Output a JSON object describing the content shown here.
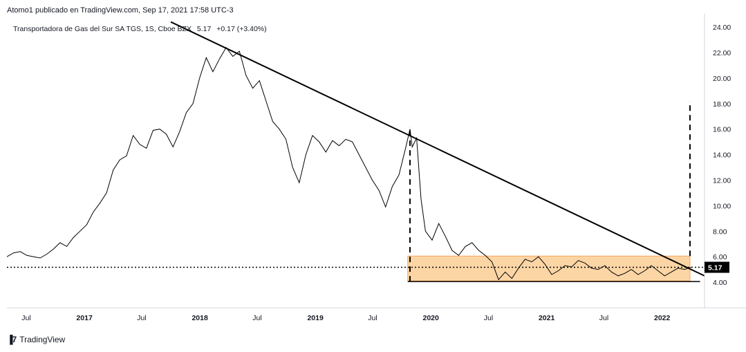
{
  "header": {
    "text": "Atomo1 publicado en TradingView.com, Sep 17, 2021 17:58 UTC-3"
  },
  "legend": {
    "symbol": "Transportadora de Gas del Sur SA TGS, 1S, Cboe BZX",
    "last": "5.17",
    "change": "+0.17 (+3.40%)"
  },
  "footer": {
    "brand": "TradingView",
    "icon": "tradingview-logo-icon"
  },
  "colors": {
    "line": "#000000",
    "zone_fill": "#fcd5a5",
    "zone_stroke": "#f7a35c",
    "price_label_bg": "#000000",
    "price_label_text": "#ffffff"
  },
  "chart_data": {
    "type": "line",
    "title": "",
    "xlabel": "",
    "ylabel": "",
    "ylim": [
      2.0,
      24.6
    ],
    "xlim": [
      "2016-05-01",
      "2022-05-15"
    ],
    "yticks": [
      "4.00",
      "6.00",
      "8.00",
      "10.00",
      "12.00",
      "14.00",
      "16.00",
      "18.00",
      "20.00",
      "22.00",
      "24.00"
    ],
    "xticks": [
      {
        "label": "Jul",
        "date": "2016-07-01",
        "bold": false
      },
      {
        "label": "2017",
        "date": "2017-01-01",
        "bold": true
      },
      {
        "label": "Jul",
        "date": "2017-07-01",
        "bold": false
      },
      {
        "label": "2018",
        "date": "2018-01-01",
        "bold": true
      },
      {
        "label": "Jul",
        "date": "2018-07-01",
        "bold": false
      },
      {
        "label": "2019",
        "date": "2019-01-01",
        "bold": true
      },
      {
        "label": "Jul",
        "date": "2019-07-01",
        "bold": false
      },
      {
        "label": "2020",
        "date": "2020-01-01",
        "bold": true
      },
      {
        "label": "Jul",
        "date": "2020-07-01",
        "bold": false
      },
      {
        "label": "2021",
        "date": "2021-01-01",
        "bold": true
      },
      {
        "label": "Jul",
        "date": "2021-07-01",
        "bold": false
      },
      {
        "label": "2022",
        "date": "2022-01-01",
        "bold": true
      }
    ],
    "grid": false,
    "current_price": {
      "label": "5.17",
      "value": 5.17
    },
    "series": [
      {
        "points": [
          [
            "2016-05-01",
            6.0
          ],
          [
            "2016-05-22",
            6.3
          ],
          [
            "2016-06-12",
            6.4
          ],
          [
            "2016-07-03",
            6.1
          ],
          [
            "2016-07-24",
            6.0
          ],
          [
            "2016-08-14",
            5.9
          ],
          [
            "2016-09-04",
            6.2
          ],
          [
            "2016-09-25",
            6.6
          ],
          [
            "2016-10-16",
            7.1
          ],
          [
            "2016-11-06",
            6.8
          ],
          [
            "2016-11-27",
            7.5
          ],
          [
            "2016-12-18",
            8.0
          ],
          [
            "2017-01-08",
            8.5
          ],
          [
            "2017-01-29",
            9.5
          ],
          [
            "2017-02-19",
            10.2
          ],
          [
            "2017-03-12",
            11.0
          ],
          [
            "2017-04-02",
            12.8
          ],
          [
            "2017-04-23",
            13.6
          ],
          [
            "2017-05-14",
            13.9
          ],
          [
            "2017-06-04",
            15.5
          ],
          [
            "2017-06-25",
            14.8
          ],
          [
            "2017-07-16",
            14.5
          ],
          [
            "2017-08-06",
            15.9
          ],
          [
            "2017-08-27",
            16.0
          ],
          [
            "2017-09-17",
            15.6
          ],
          [
            "2017-10-08",
            14.6
          ],
          [
            "2017-10-29",
            15.8
          ],
          [
            "2017-11-19",
            17.3
          ],
          [
            "2017-12-10",
            18.0
          ],
          [
            "2017-12-31",
            20.0
          ],
          [
            "2018-01-21",
            21.6
          ],
          [
            "2018-02-11",
            20.5
          ],
          [
            "2018-03-04",
            21.5
          ],
          [
            "2018-03-25",
            22.4
          ],
          [
            "2018-04-15",
            21.7
          ],
          [
            "2018-05-06",
            22.1
          ],
          [
            "2018-05-27",
            20.2
          ],
          [
            "2018-06-17",
            19.2
          ],
          [
            "2018-07-08",
            19.8
          ],
          [
            "2018-07-29",
            18.2
          ],
          [
            "2018-08-19",
            16.6
          ],
          [
            "2018-09-09",
            16.0
          ],
          [
            "2018-09-30",
            15.2
          ],
          [
            "2018-10-21",
            13.0
          ],
          [
            "2018-11-11",
            11.8
          ],
          [
            "2018-12-02",
            14.0
          ],
          [
            "2018-12-23",
            15.5
          ],
          [
            "2019-01-13",
            15.0
          ],
          [
            "2019-02-03",
            14.2
          ],
          [
            "2019-02-24",
            15.1
          ],
          [
            "2019-03-17",
            14.7
          ],
          [
            "2019-04-07",
            15.2
          ],
          [
            "2019-04-28",
            15.0
          ],
          [
            "2019-05-19",
            14.0
          ],
          [
            "2019-06-09",
            13.0
          ],
          [
            "2019-06-30",
            12.0
          ],
          [
            "2019-07-21",
            11.2
          ],
          [
            "2019-08-11",
            9.9
          ],
          [
            "2019-09-01",
            11.5
          ],
          [
            "2019-09-22",
            12.4
          ],
          [
            "2019-10-13",
            14.5
          ],
          [
            "2019-10-27",
            16.0
          ],
          [
            "2019-11-03",
            14.6
          ],
          [
            "2019-11-17",
            15.3
          ],
          [
            "2019-12-01",
            10.5
          ],
          [
            "2019-12-15",
            8.0
          ],
          [
            "2020-01-05",
            7.3
          ],
          [
            "2020-01-26",
            8.6
          ],
          [
            "2020-02-16",
            7.6
          ],
          [
            "2020-03-08",
            6.5
          ],
          [
            "2020-03-29",
            6.1
          ],
          [
            "2020-04-19",
            6.8
          ],
          [
            "2020-05-10",
            7.1
          ],
          [
            "2020-05-31",
            6.5
          ],
          [
            "2020-06-21",
            6.1
          ],
          [
            "2020-07-12",
            5.6
          ],
          [
            "2020-08-02",
            4.2
          ],
          [
            "2020-08-23",
            4.8
          ],
          [
            "2020-09-13",
            4.3
          ],
          [
            "2020-10-04",
            5.1
          ],
          [
            "2020-10-25",
            5.8
          ],
          [
            "2020-11-15",
            5.6
          ],
          [
            "2020-12-06",
            6.0
          ],
          [
            "2020-12-27",
            5.4
          ],
          [
            "2021-01-17",
            4.6
          ],
          [
            "2021-02-07",
            4.9
          ],
          [
            "2021-02-28",
            5.3
          ],
          [
            "2021-03-21",
            5.2
          ],
          [
            "2021-04-11",
            5.7
          ],
          [
            "2021-05-02",
            5.5
          ],
          [
            "2021-05-23",
            5.1
          ],
          [
            "2021-06-13",
            5.0
          ],
          [
            "2021-07-04",
            5.3
          ],
          [
            "2021-07-25",
            4.8
          ],
          [
            "2021-08-15",
            4.5
          ],
          [
            "2021-09-05",
            4.7
          ],
          [
            "2021-09-26",
            5.0
          ],
          [
            "2021-10-17",
            4.6
          ],
          [
            "2021-11-07",
            4.9
          ],
          [
            "2021-11-28",
            5.3
          ],
          [
            "2021-12-19",
            4.9
          ],
          [
            "2022-01-09",
            4.5
          ],
          [
            "2022-01-30",
            4.8
          ],
          [
            "2022-02-20",
            5.1
          ],
          [
            "2022-03-13",
            5.0
          ],
          [
            "2022-04-03",
            5.17
          ]
        ]
      }
    ],
    "annotations": {
      "trendline": {
        "from": [
          "2017-10-01",
          24.4
        ],
        "to": [
          "2022-05-15",
          4.5
        ]
      },
      "support_line": {
        "from": [
          "2019-10-20",
          4.05
        ],
        "to": [
          "2022-05-01",
          4.05
        ]
      },
      "zone": {
        "x0": "2019-10-20",
        "x1": "2022-03-30",
        "y0": 4.1,
        "y1": 6.05
      },
      "vertical_dashed": [
        {
          "x": "2019-10-27",
          "y0": 4.05,
          "y1": 16.2
        },
        {
          "x": "2022-03-30",
          "y0": 6.05,
          "y1": 18.2
        }
      ],
      "current_price_line": {
        "y": 5.17
      }
    }
  }
}
